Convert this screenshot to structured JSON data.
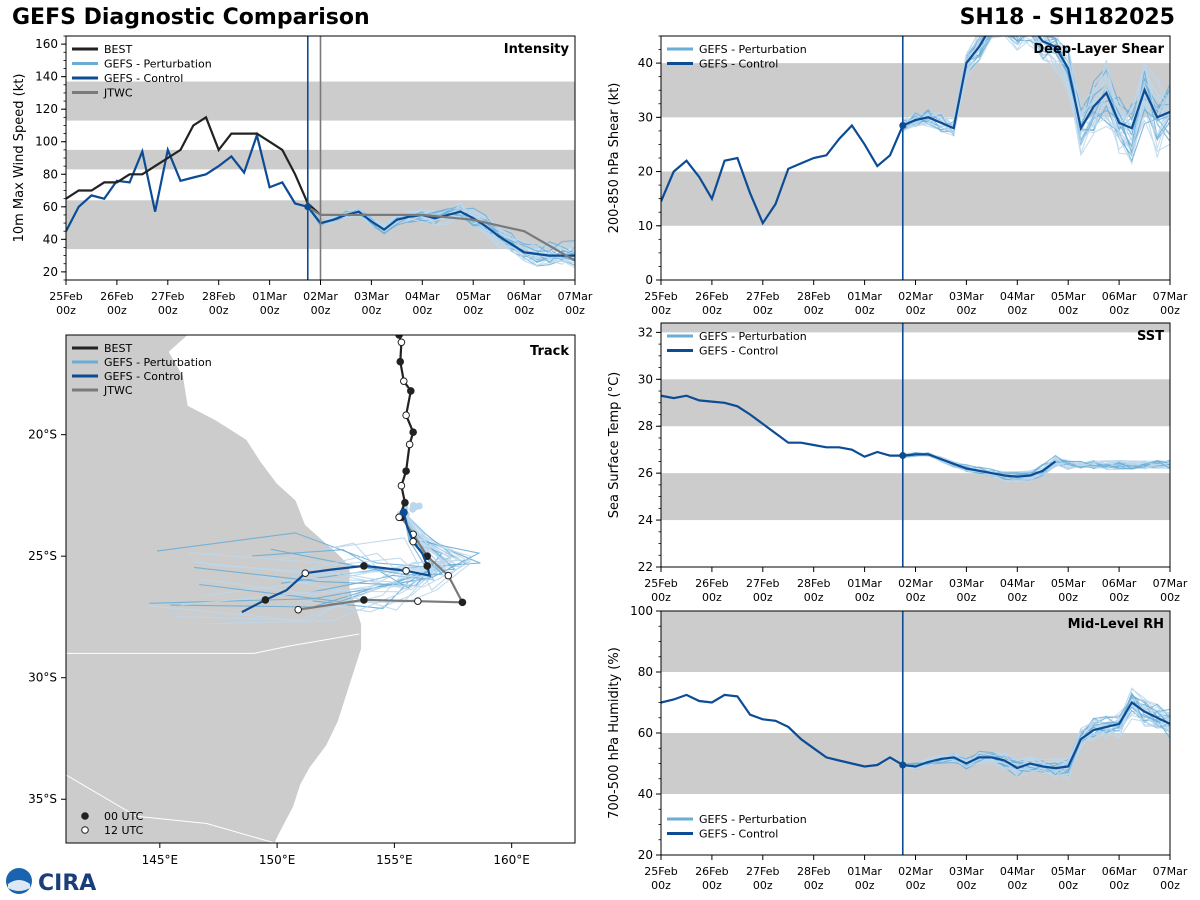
{
  "header": {
    "title": "GEFS Diagnostic Comparison",
    "storm_id": "SH18 - SH182025"
  },
  "colors": {
    "best": "#222222",
    "pert": "#6aaed6",
    "pert_light": "#bcd7ec",
    "control": "#0b4c94",
    "jtwc": "#7a7a7a",
    "band": "#cccccc",
    "land": "#cccccc"
  },
  "time_axis": {
    "ticks": [
      "25Feb",
      "26Feb",
      "27Feb",
      "28Feb",
      "01Mar",
      "02Mar",
      "03Mar",
      "04Mar",
      "05Mar",
      "06Mar",
      "07Mar"
    ],
    "sub": "00z",
    "range_days": [
      0,
      10
    ],
    "current_day": 4.75
  },
  "logo": {
    "text": "CIRA"
  },
  "chart_data": [
    {
      "id": "intensity",
      "type": "line",
      "title": "Intensity",
      "ylabel": "10m Max Wind Speed (kt)",
      "ylim": [
        15,
        165
      ],
      "yticks": [
        20,
        40,
        60,
        80,
        100,
        120,
        140,
        160
      ],
      "bands": [
        [
          34,
          64
        ],
        [
          83,
          95
        ],
        [
          113,
          137
        ]
      ],
      "jtwc_marker_day": 5.0,
      "legend": [
        "BEST",
        "GEFS - Perturbation",
        "GEFS - Control",
        "JTWC"
      ],
      "series": [
        {
          "name": "BEST",
          "x": [
            0,
            0.25,
            0.5,
            0.75,
            1,
            1.25,
            1.5,
            1.75,
            2,
            2.25,
            2.5,
            2.75,
            3,
            3.25,
            3.5,
            3.75,
            4,
            4.25,
            4.5,
            4.75,
            5
          ],
          "y": [
            65,
            70,
            70,
            75,
            75,
            80,
            80,
            85,
            90,
            95,
            110,
            115,
            95,
            105,
            105,
            105,
            100,
            95,
            80,
            62,
            55
          ]
        },
        {
          "name": "GEFS - Control",
          "x": [
            0,
            0.25,
            0.5,
            0.75,
            1,
            1.25,
            1.5,
            1.75,
            2,
            2.25,
            2.5,
            2.75,
            3,
            3.25,
            3.5,
            3.75,
            4,
            4.25,
            4.5,
            4.75,
            5,
            5.25,
            5.5,
            5.75,
            6,
            6.25,
            6.5,
            6.75,
            7,
            7.25,
            7.5,
            7.75,
            8,
            8.25,
            8.5,
            8.75,
            9,
            9.25,
            9.5,
            9.75,
            10
          ],
          "y": [
            45,
            60,
            67,
            65,
            76,
            75,
            94,
            57,
            95,
            76,
            78,
            80,
            85,
            91,
            81,
            104,
            72,
            75,
            62,
            60,
            50,
            52,
            55,
            57,
            51,
            46,
            52,
            54,
            55,
            53,
            55,
            57,
            53,
            48,
            42,
            37,
            32,
            31,
            30,
            30,
            30
          ]
        },
        {
          "name": "JTWC",
          "x": [
            4.75,
            5,
            6,
            7,
            8,
            9,
            10
          ],
          "y": [
            60,
            55,
            55,
            55,
            52,
            45,
            27
          ]
        }
      ],
      "perturbation_count": 30
    },
    {
      "id": "shear",
      "type": "line",
      "title": "Deep-Layer Shear",
      "ylabel": "200-850 hPa Shear (kt)",
      "ylim": [
        0,
        45
      ],
      "yticks": [
        0,
        10,
        20,
        30,
        40
      ],
      "bands": [
        [
          10,
          20
        ],
        [
          30,
          40
        ]
      ],
      "legend": [
        "GEFS - Perturbation",
        "GEFS - Control"
      ],
      "series": [
        {
          "name": "GEFS - Control",
          "x": [
            0,
            0.25,
            0.5,
            0.75,
            1,
            1.25,
            1.5,
            1.75,
            2,
            2.25,
            2.5,
            2.75,
            3,
            3.25,
            3.5,
            3.75,
            4,
            4.25,
            4.5,
            4.75,
            5,
            5.25,
            5.5,
            5.75,
            6,
            6.25,
            6.5,
            6.75,
            7,
            7.25,
            7.5,
            7.75,
            8,
            8.25,
            8.5,
            8.75,
            9,
            9.25,
            9.5,
            9.75,
            10
          ],
          "y": [
            14.5,
            20,
            22,
            19,
            15,
            22,
            22.5,
            16,
            10.5,
            14,
            20.5,
            21.5,
            22.5,
            23,
            26,
            28.5,
            25,
            21,
            23,
            28.5,
            29.5,
            30,
            29,
            28,
            40,
            43,
            47,
            48,
            46,
            47,
            44,
            43,
            39,
            28,
            32,
            34.5,
            29,
            28,
            35,
            30,
            31
          ]
        }
      ],
      "perturbation_count": 30
    },
    {
      "id": "sst",
      "type": "line",
      "title": "SST",
      "ylabel": "Sea Surface Temp (°C)",
      "ylim": [
        22,
        32.4
      ],
      "yticks": [
        22,
        24,
        26,
        28,
        30,
        32
      ],
      "bands": [
        [
          24,
          26
        ],
        [
          28,
          30
        ],
        [
          32,
          34
        ]
      ],
      "legend": [
        "GEFS - Perturbation",
        "GEFS - Control"
      ],
      "series": [
        {
          "name": "GEFS - Control",
          "x": [
            0,
            0.25,
            0.5,
            0.75,
            1,
            1.25,
            1.5,
            1.75,
            2,
            2.25,
            2.5,
            2.75,
            3,
            3.25,
            3.5,
            3.75,
            4,
            4.25,
            4.5,
            4.75,
            5,
            5.25,
            5.5,
            5.75,
            6,
            6.25,
            6.5,
            6.75,
            7,
            7.25,
            7.5,
            7.75
          ],
          "y": [
            29.3,
            29.2,
            29.3,
            29.1,
            29.05,
            29,
            28.85,
            28.5,
            28.1,
            27.7,
            27.3,
            27.3,
            27.2,
            27.1,
            27.1,
            27,
            26.7,
            26.9,
            26.75,
            26.75,
            26.8,
            26.8,
            26.6,
            26.4,
            26.2,
            26.1,
            26,
            25.9,
            25.85,
            25.9,
            26.1,
            26.5
          ]
        }
      ],
      "perturbation_count": 25
    },
    {
      "id": "rh",
      "type": "line",
      "title": "Mid-Level RH",
      "ylabel": "700-500 hPa Humidity (%)",
      "ylim": [
        20,
        100
      ],
      "yticks": [
        20,
        40,
        60,
        80,
        100
      ],
      "bands": [
        [
          40,
          60
        ],
        [
          80,
          100
        ]
      ],
      "legend": [
        "GEFS - Perturbation",
        "GEFS - Control"
      ],
      "series": [
        {
          "name": "GEFS - Control",
          "x": [
            0,
            0.25,
            0.5,
            0.75,
            1,
            1.25,
            1.5,
            1.75,
            2,
            2.25,
            2.5,
            2.75,
            3,
            3.25,
            3.5,
            3.75,
            4,
            4.25,
            4.5,
            4.75,
            5,
            5.25,
            5.5,
            5.75,
            6,
            6.25,
            6.5,
            6.75,
            7,
            7.25,
            7.5,
            7.75,
            8,
            8.25,
            8.5,
            8.75,
            9,
            9.25,
            9.5,
            9.75,
            10
          ],
          "y": [
            70,
            71,
            72.5,
            70.5,
            70,
            72.5,
            72,
            66,
            64.5,
            64,
            62,
            58,
            55,
            52,
            51,
            50,
            49,
            49.5,
            52,
            49.5,
            49,
            50.5,
            51.5,
            52,
            50,
            52,
            52,
            51,
            48.5,
            50,
            49,
            48.5,
            49,
            58,
            61,
            62,
            63,
            70,
            67,
            65,
            63
          ]
        }
      ],
      "perturbation_count": 30
    },
    {
      "id": "track",
      "type": "scatter",
      "title": "Track",
      "xlim": [
        141,
        162.7
      ],
      "ylim": [
        -36.8,
        -15.9
      ],
      "xticks": [
        145,
        150,
        155,
        160
      ],
      "xtick_labels": [
        "145°E",
        "150°E",
        "155°E",
        "160°E"
      ],
      "yticks": [
        -20,
        -25,
        -30,
        -35
      ],
      "ytick_labels": [
        "20°S",
        "25°S",
        "30°S",
        "35°S"
      ],
      "legend": [
        "BEST",
        "GEFS - Perturbation",
        "GEFS - Control",
        "JTWC"
      ],
      "marker_legend": [
        "00 UTC",
        "12 UTC"
      ],
      "best": {
        "lon": [
          155.2,
          155.3,
          155.25,
          155.4,
          155.7,
          155.5,
          155.8,
          155.65,
          155.5,
          155.3,
          155.45,
          155.2
        ],
        "lat": [
          -15.9,
          -16.2,
          -17.0,
          -17.8,
          -18.2,
          -19.2,
          -19.9,
          -20.4,
          -21.5,
          -22.1,
          -22.8,
          -23.4
        ]
      },
      "control": {
        "lon": [
          155.4,
          155.55,
          155.8,
          156.2,
          156.4,
          156.5,
          155.5,
          154.2,
          153.7,
          152.3,
          151.2,
          150.4,
          149.5,
          148.5
        ],
        "lat": [
          -23.2,
          -23.8,
          -24.4,
          -24.9,
          -25.4,
          -25.8,
          -25.6,
          -25.45,
          -25.4,
          -25.55,
          -25.7,
          -26.4,
          -26.8,
          -27.3
        ]
      },
      "jtwc": {
        "lon": [
          155.3,
          155.8,
          156.4,
          157.3,
          157.9,
          156.0,
          153.7,
          150.9
        ],
        "lat": [
          -23.4,
          -24.1,
          -25.0,
          -25.8,
          -26.9,
          -26.85,
          -26.8,
          -27.2
        ]
      }
    }
  ]
}
